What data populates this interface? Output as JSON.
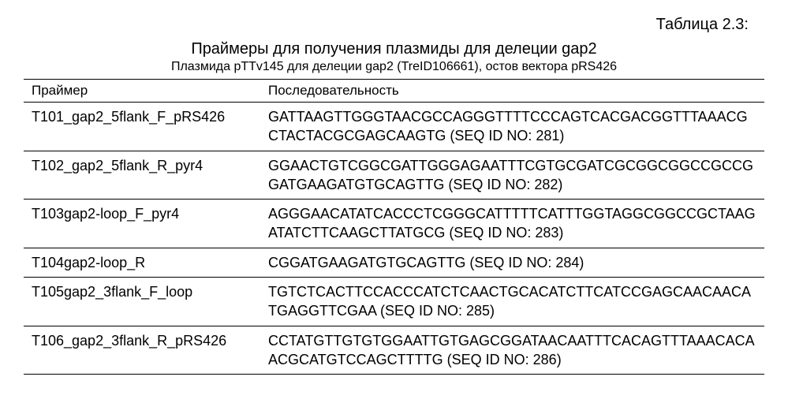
{
  "table_label": "Таблица 2.3:",
  "title": "Праймеры для получения плазмиды для делеции gap2",
  "subtitle": "Плазмида pTTv145 для делеции gap2 (TreID106661), остов вектора pRS426",
  "headers": {
    "primer": "Праймер",
    "sequence": "Последовательность"
  },
  "rows": [
    {
      "primer": "T101_gap2_5flank_F_pRS426",
      "sequence": "GATTAAGTTGGGTAACGCCAGGGTTTTCCCAGTCACGACGGTTTAAACGCTACTACGCGAGCAAGTG (SEQ ID NO: 281)"
    },
    {
      "primer": "T102_gap2_5flank_R_pyr4",
      "sequence": "GGAACTGTCGGCGATTGGGAGAATTTCGTGCGATCGCGGCGGCCGCCGGATGAAGATGTGCAGTTG (SEQ ID NO: 282)"
    },
    {
      "primer": "T103gap2-loop_F_pyr4",
      "sequence": "AGGGAACATATCACCCTCGGGCATTTTTCATTTGGTAGGCGGCCGCTAAGATATCTTCAAGCTTATGCG (SEQ ID NO: 283)"
    },
    {
      "primer": "T104gap2-loop_R",
      "sequence": "CGGATGAAGATGTGCAGTTG (SEQ ID NO: 284)"
    },
    {
      "primer": "T105gap2_3flank_F_loop",
      "sequence": "TGTCTCACTTCCACCCATCTCAACTGCACATCTTCATCCGAGCAACAACATGAGGTTCGAA (SEQ ID NO: 285)"
    },
    {
      "primer": "T106_gap2_3flank_R_pRS426",
      "sequence": "CCTATGTTGTGTGGAATTGTGAGCGGATAACAATTTCACAGTTTAAACACAACGCATGTCCAGCTTTTG (SEQ ID NO: 286)"
    }
  ]
}
